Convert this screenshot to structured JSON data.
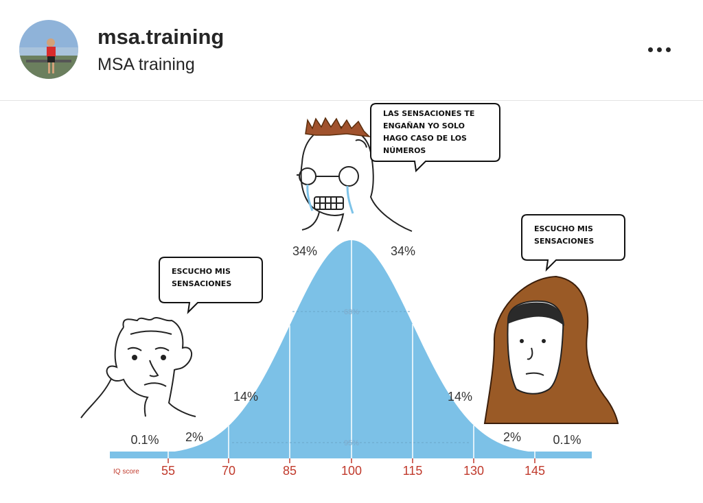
{
  "header": {
    "username": "msa.training",
    "full_name": "MSA training",
    "more_icon": "more-horizontal-icon"
  },
  "meme": {
    "bubbles": {
      "top": [
        "LAS SENSACIONES TE",
        "ENGAÑAN YO SOLO",
        "HAGO CASO DE LOS",
        "NÚMEROS"
      ],
      "left": [
        "ESCUCHO MIS",
        "SENSACIONES"
      ],
      "right": [
        "ESCUCHO MIS",
        "SENSACIONES"
      ]
    },
    "curve": {
      "percentages": [
        "0.1%",
        "2%",
        "14%",
        "34%",
        "34%",
        "14%",
        "2%",
        "0.1%"
      ],
      "inner_labels": [
        "68%",
        "95%"
      ],
      "axis_label": "IQ score",
      "ticks": [
        "55",
        "70",
        "85",
        "100",
        "115",
        "130",
        "145"
      ],
      "fill_color": "#7cc1e7",
      "tick_color": "#c0392b"
    }
  }
}
